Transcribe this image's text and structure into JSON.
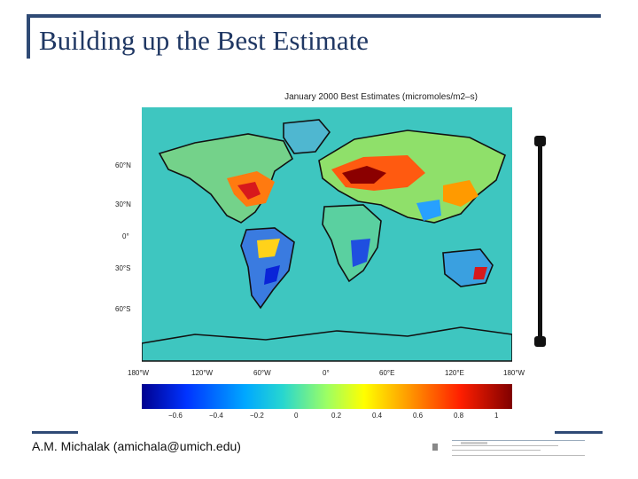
{
  "slide": {
    "title": "Building up the Best Estimate",
    "footer": "A.M. Michalak (amichala@umich.edu)"
  },
  "figure": {
    "title": "January 2000 Best Estimates (micromoles/m2–s)",
    "lat_labels": [
      "60°N",
      "30°N",
      "0°",
      "30°S",
      "60°S"
    ],
    "lon_labels": [
      "180°W",
      "120°W",
      "60°W",
      "0°",
      "60°E",
      "120°E",
      "180°W"
    ],
    "colorbar_ticks": [
      "−0.6",
      "−0.4",
      "−0.2",
      "0",
      "0.2",
      "0.4",
      "0.6",
      "0.8",
      "1"
    ]
  },
  "colors": {
    "accent": "#2f4a75",
    "ocean": "#3ec6c0",
    "land_positive": "#d7191c",
    "land_negative": "#2b4fd8"
  }
}
